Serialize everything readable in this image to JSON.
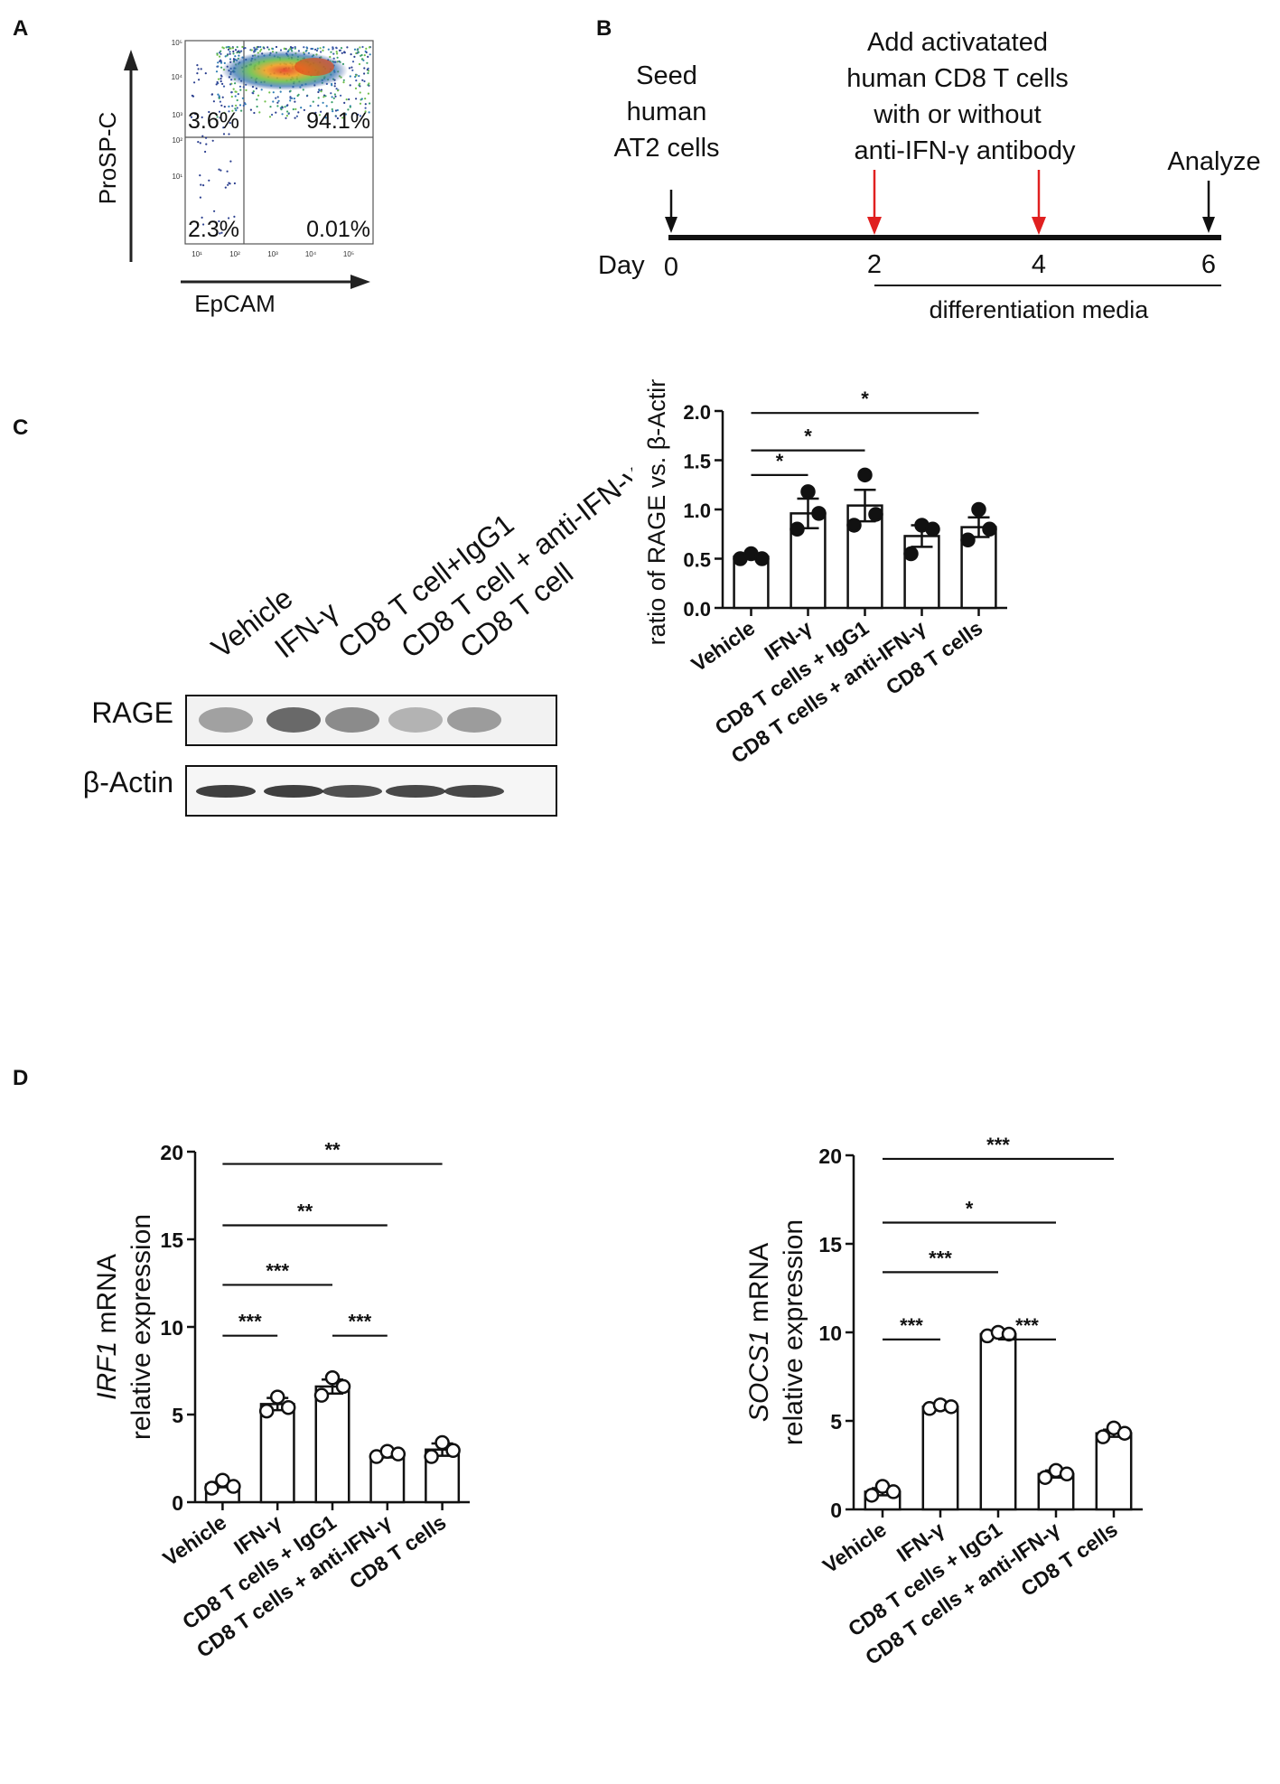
{
  "panels": {
    "A": "A",
    "B": "B",
    "C": "C",
    "D": "D"
  },
  "flow": {
    "y_label": "ProSP-C",
    "x_label": "EpCAM",
    "q_upper_left": "3.6%",
    "q_upper_right": "94.1%",
    "q_lower_left": "2.3%",
    "q_lower_right": "0.01%",
    "y_ticks": [
      "10⁵",
      "10⁴",
      "10³",
      "10²",
      "10¹"
    ],
    "x_ticks": [
      "10¹",
      "10²",
      "10³",
      "10⁴",
      "10⁵"
    ]
  },
  "timeline": {
    "seed_lines": [
      "Seed",
      "human",
      "AT2 cells"
    ],
    "add_lines": [
      "Add activatated",
      "human CD8 T cells",
      "with or without",
      "anti-IFN-γ antibody"
    ],
    "analyze": "Analyze",
    "day_label": "Day",
    "days": [
      "0",
      "2",
      "4",
      "6"
    ],
    "media": "differentiation media"
  },
  "blot": {
    "lanes": [
      "Vehicle",
      "IFN-γ",
      "CD8 T cell+IgG1",
      "CD8 T cell + anti-IFN-γ",
      "CD8 T cell"
    ],
    "row1": "RAGE",
    "row2": "β-Actin",
    "rage_intensity": [
      0.45,
      0.95,
      0.65,
      0.3,
      0.5
    ],
    "actin_intensity": [
      1.0,
      1.0,
      0.9,
      0.95,
      0.95
    ]
  },
  "chart_data": [
    {
      "type": "bar",
      "panel": "C",
      "ylabel": "ratio of RAGE vs. β-Actin",
      "ylim": [
        0,
        2.0
      ],
      "yticks": [
        "0.0",
        "0.5",
        "1.0",
        "1.5",
        "2.0"
      ],
      "categories": [
        "Vehicle",
        "IFN-γ",
        "CD8 T cells + IgG1",
        "CD8 T cells + anti-IFN-γ",
        "CD8 T cells"
      ],
      "values": [
        0.52,
        0.96,
        1.04,
        0.73,
        0.82
      ],
      "errors": [
        0.02,
        0.15,
        0.16,
        0.11,
        0.1
      ],
      "points": [
        [
          0.5,
          0.55,
          0.5
        ],
        [
          0.8,
          1.18,
          0.96
        ],
        [
          0.84,
          1.35,
          0.95
        ],
        [
          0.55,
          0.84,
          0.8
        ],
        [
          0.69,
          1.0,
          0.8
        ]
      ],
      "significance": [
        {
          "from": 0,
          "to": 4,
          "level": 1.98,
          "label": "*"
        },
        {
          "from": 0,
          "to": 2,
          "level": 1.6,
          "label": "*"
        },
        {
          "from": 0,
          "to": 1,
          "level": 1.35,
          "label": "*"
        }
      ],
      "filled_points": true
    },
    {
      "type": "bar",
      "panel": "D-left",
      "ylabel_gene": "IRF1",
      "ylabel_suffix": " mRNA",
      "ylabel_line2": "relative expression",
      "ylim": [
        0,
        20
      ],
      "yticks": [
        "0",
        "5",
        "10",
        "15",
        "20"
      ],
      "categories": [
        "Vehicle",
        "IFN-γ",
        "CD8 T cells + IgG1",
        "CD8 T cells + anti-IFN-γ",
        "CD8 T cells"
      ],
      "values": [
        1.0,
        5.6,
        6.6,
        2.7,
        3.0
      ],
      "errors": [
        0.15,
        0.35,
        0.4,
        0.15,
        0.35
      ],
      "points": [
        [
          0.8,
          1.25,
          0.9
        ],
        [
          5.2,
          6.0,
          5.4
        ],
        [
          6.1,
          7.1,
          6.6
        ],
        [
          2.6,
          2.9,
          2.75
        ],
        [
          2.6,
          3.4,
          2.95
        ]
      ],
      "significance": [
        {
          "from": 0,
          "to": 4,
          "level": 19.3,
          "label": "**"
        },
        {
          "from": 0,
          "to": 3,
          "level": 15.8,
          "label": "**"
        },
        {
          "from": 0,
          "to": 2,
          "level": 12.4,
          "label": "***"
        },
        {
          "from": 0,
          "to": 1,
          "level": 9.5,
          "label": "***"
        },
        {
          "from": 2,
          "to": 3,
          "level": 9.5,
          "label": "***"
        }
      ],
      "filled_points": false
    },
    {
      "type": "bar",
      "panel": "D-right",
      "ylabel_gene": "SOCS1",
      "ylabel_suffix": " mRNA",
      "ylabel_line2": "relative expression",
      "ylim": [
        0,
        20
      ],
      "yticks": [
        "0",
        "5",
        "10",
        "15",
        "20"
      ],
      "categories": [
        "Vehicle",
        "IFN-γ",
        "CD8 T cells + IgG1",
        "CD8 T cells + anti-IFN-γ",
        "CD8 T cells"
      ],
      "values": [
        1.0,
        5.8,
        9.9,
        2.0,
        4.3
      ],
      "errors": [
        0.2,
        0.1,
        0.1,
        0.2,
        0.2
      ],
      "points": [
        [
          0.8,
          1.3,
          1.0
        ],
        [
          5.7,
          5.9,
          5.8
        ],
        [
          9.8,
          10.0,
          9.9
        ],
        [
          1.8,
          2.2,
          2.0
        ],
        [
          4.1,
          4.6,
          4.3
        ]
      ],
      "significance": [
        {
          "from": 0,
          "to": 4,
          "level": 19.8,
          "label": "***"
        },
        {
          "from": 0,
          "to": 3,
          "level": 16.2,
          "label": "*"
        },
        {
          "from": 0,
          "to": 2,
          "level": 13.4,
          "label": "***"
        },
        {
          "from": 0,
          "to": 1,
          "level": 9.6,
          "label": "***"
        },
        {
          "from": 2,
          "to": 3,
          "level": 9.6,
          "label": "***"
        }
      ],
      "filled_points": false
    }
  ]
}
